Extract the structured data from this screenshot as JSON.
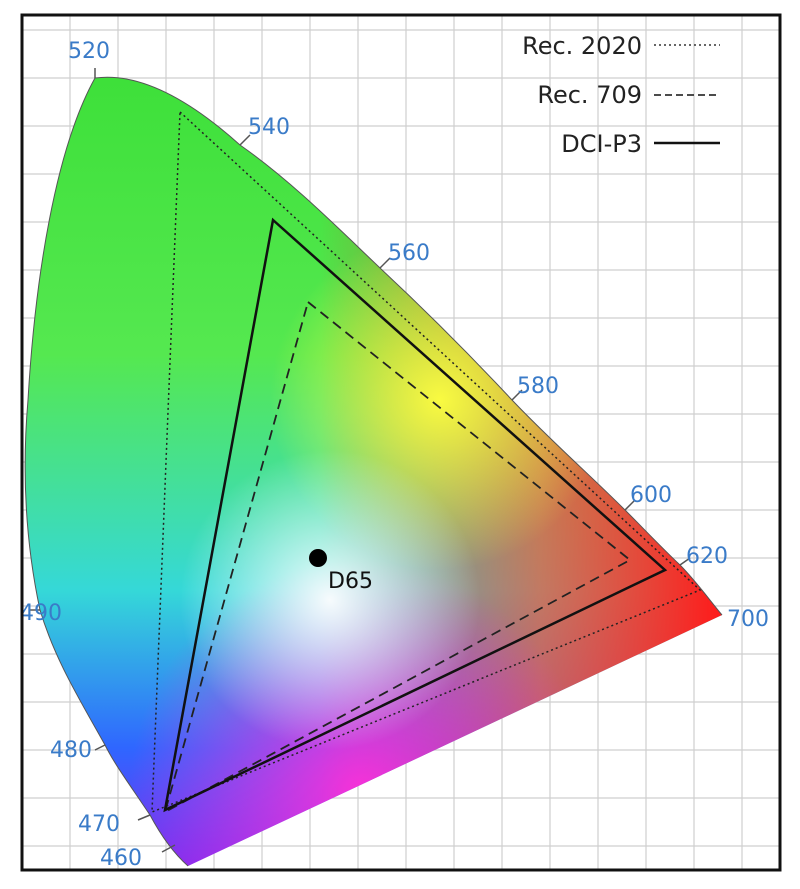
{
  "legend": [
    "Rec. 2020",
    "Rec. 709",
    "DCI-P3"
  ],
  "wavelength_labels": [
    "520",
    "540",
    "560",
    "580",
    "600",
    "620",
    "700",
    "490",
    "480",
    "470",
    "460"
  ],
  "white_point": "D65"
}
